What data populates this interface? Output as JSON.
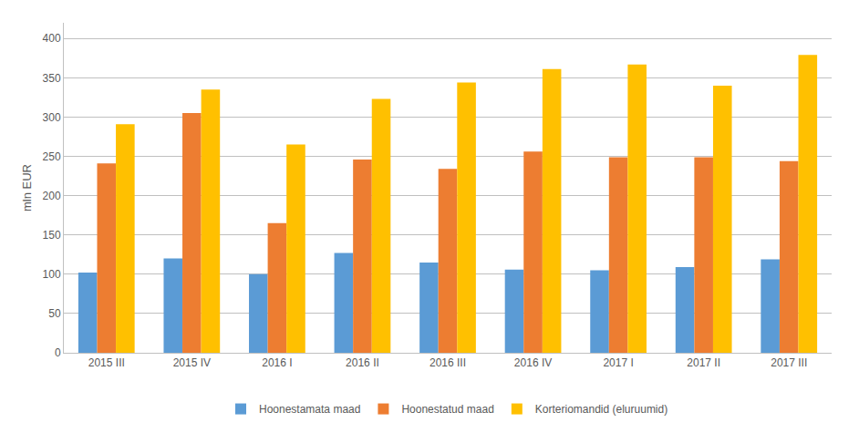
{
  "chart_data": {
    "type": "bar",
    "categories": [
      "2015 III",
      "2015 IV",
      "2016 I",
      "2016 II",
      "2016 III",
      "2016 IV",
      "2017 I",
      "2017 II",
      "2017 III"
    ],
    "series": [
      {
        "name": "Hoonestamata maad",
        "color": "#5B9BD5",
        "values": [
          102,
          120,
          100,
          127,
          115,
          106,
          105,
          109,
          119
        ]
      },
      {
        "name": "Hoonestatud maad",
        "color": "#ED7D31",
        "values": [
          241,
          305,
          165,
          246,
          234,
          256,
          249,
          249,
          244
        ]
      },
      {
        "name": "Korteriomandid (eluruumid)",
        "color": "#FFC000",
        "values": [
          291,
          335,
          265,
          323,
          344,
          361,
          367,
          340,
          379
        ]
      }
    ],
    "ylabel": "mln EUR",
    "ylim": [
      0,
      420
    ],
    "yticks": [
      0,
      50,
      100,
      150,
      200,
      250,
      300,
      350,
      400
    ],
    "grid": true,
    "legend": "bottom"
  }
}
